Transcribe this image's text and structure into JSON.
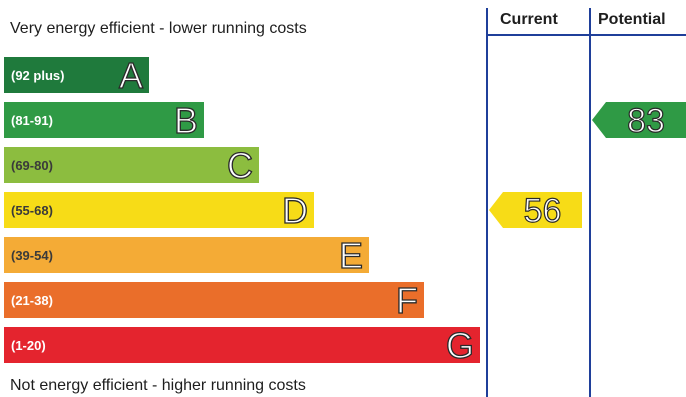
{
  "header": {
    "top_caption": "Very energy efficient - lower running costs",
    "bottom_caption": "Not energy efficient - higher running costs",
    "current_label": "Current",
    "potential_label": "Potential"
  },
  "colors": {
    "divider": "#1f3f9a",
    "arrow_text": "#ffffff"
  },
  "chart_data": {
    "type": "bar",
    "title": "",
    "bands": [
      {
        "letter": "A",
        "range": "(92 plus)",
        "color": "#1f7a3c"
      },
      {
        "letter": "B",
        "range": "(81-91)",
        "color": "#2f9a45"
      },
      {
        "letter": "C",
        "range": "(69-80)",
        "color": "#8cbd3f"
      },
      {
        "letter": "D",
        "range": "(55-68)",
        "color": "#f7dc17"
      },
      {
        "letter": "E",
        "range": "(39-54)",
        "color": "#f4ab36"
      },
      {
        "letter": "F",
        "range": "(21-38)",
        "color": "#ea6e2a"
      },
      {
        "letter": "G",
        "range": "(1-20)",
        "color": "#e4242e"
      }
    ],
    "current": {
      "value": 56,
      "band": "D",
      "color": "#f7dc17"
    },
    "potential": {
      "value": 83,
      "band": "B",
      "color": "#2f9a45"
    }
  }
}
